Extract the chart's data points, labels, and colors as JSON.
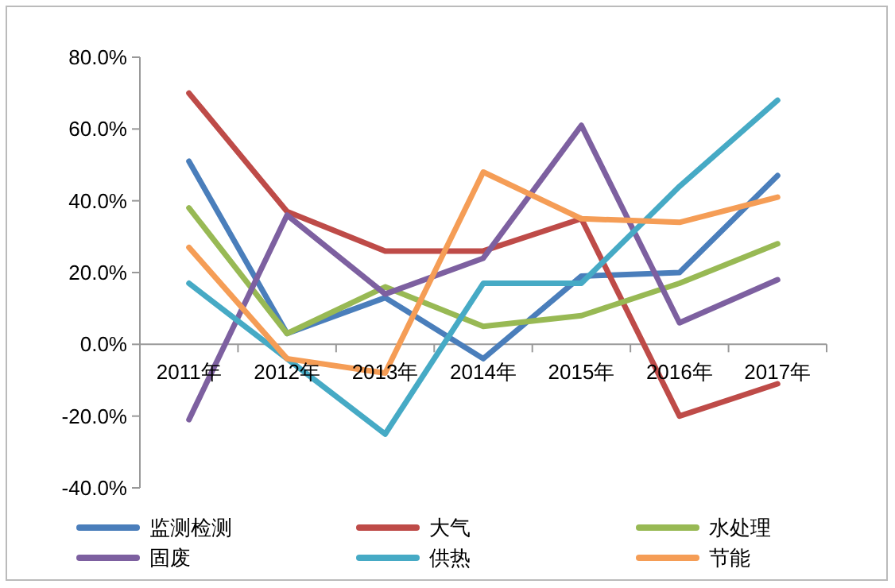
{
  "chart_data": {
    "type": "line",
    "categories": [
      "2011年",
      "2012年",
      "2013年",
      "2014年",
      "2015年",
      "2016年",
      "2017年"
    ],
    "ylim": [
      -40,
      80
    ],
    "yticks": [
      {
        "value": -40,
        "label": "-40.0%"
      },
      {
        "value": -20,
        "label": "-20.0%"
      },
      {
        "value": 0,
        "label": "0.0%"
      },
      {
        "value": 20,
        "label": "20.0%"
      },
      {
        "value": 40,
        "label": "40.0%"
      },
      {
        "value": 60,
        "label": "60.0%"
      },
      {
        "value": 80,
        "label": "80.0%"
      }
    ],
    "legend": "bottom",
    "marker": "none",
    "line_style": "solid",
    "series": [
      {
        "name": "监测检测",
        "color": "#4a7ebb",
        "values": [
          51,
          3,
          13,
          -4,
          19,
          20,
          47
        ]
      },
      {
        "name": "大气",
        "color": "#be4b48",
        "values": [
          70,
          37,
          26,
          26,
          35,
          -20,
          -11
        ]
      },
      {
        "name": "水处理",
        "color": "#98b954",
        "values": [
          38,
          3,
          16,
          5,
          8,
          17,
          28
        ]
      },
      {
        "name": "固废",
        "color": "#7d60a0",
        "values": [
          -21,
          36,
          14,
          24,
          61,
          6,
          18
        ]
      },
      {
        "name": "供热",
        "color": "#46aac5",
        "values": [
          17,
          -4,
          -25,
          17,
          17,
          44,
          68
        ]
      },
      {
        "name": "节能",
        "color": "#f59d56",
        "values": [
          27,
          -4,
          -8,
          48,
          35,
          34,
          41
        ]
      }
    ]
  }
}
